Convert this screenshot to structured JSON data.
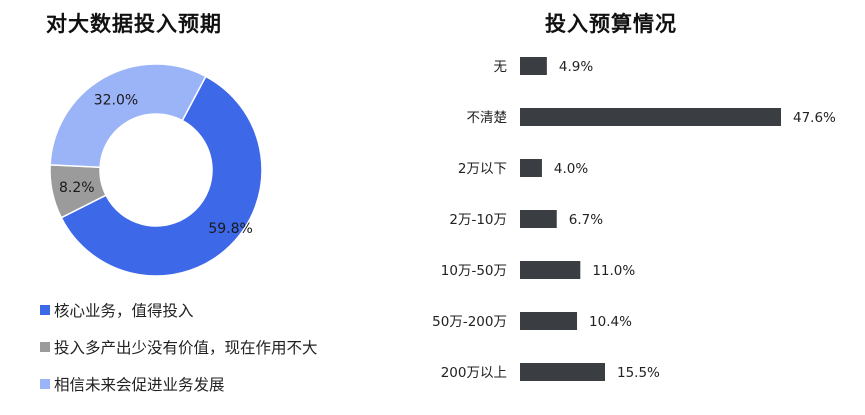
{
  "chart_data": [
    {
      "type": "pie",
      "title": "对大数据投入预期",
      "series": [
        {
          "name": "核心业务，值得投入",
          "value": 59.8,
          "label": "59.8%",
          "color": "#3d68e8"
        },
        {
          "name": "投入多产出少没有价值，现在作用不大",
          "value": 8.2,
          "label": "8.2%",
          "color": "#9b9b9b"
        },
        {
          "name": "相信未来会促进业务发展",
          "value": 32.0,
          "label": "32.0%",
          "color": "#9bb3f7"
        }
      ]
    },
    {
      "type": "bar",
      "orientation": "horizontal",
      "title": "投入预算情况",
      "color": "#3a3d42",
      "categories": [
        "无",
        "不清楚",
        "2万以下",
        "2万-10万",
        "10万-50万",
        "50万-200万",
        "200万以上"
      ],
      "values": [
        4.9,
        47.6,
        4.0,
        6.7,
        11.0,
        10.4,
        15.5
      ],
      "labels": [
        "4.9%",
        "47.6%",
        "4.0%",
        "6.7%",
        "11.0%",
        "10.4%",
        "15.5%"
      ],
      "unit": "%"
    }
  ]
}
